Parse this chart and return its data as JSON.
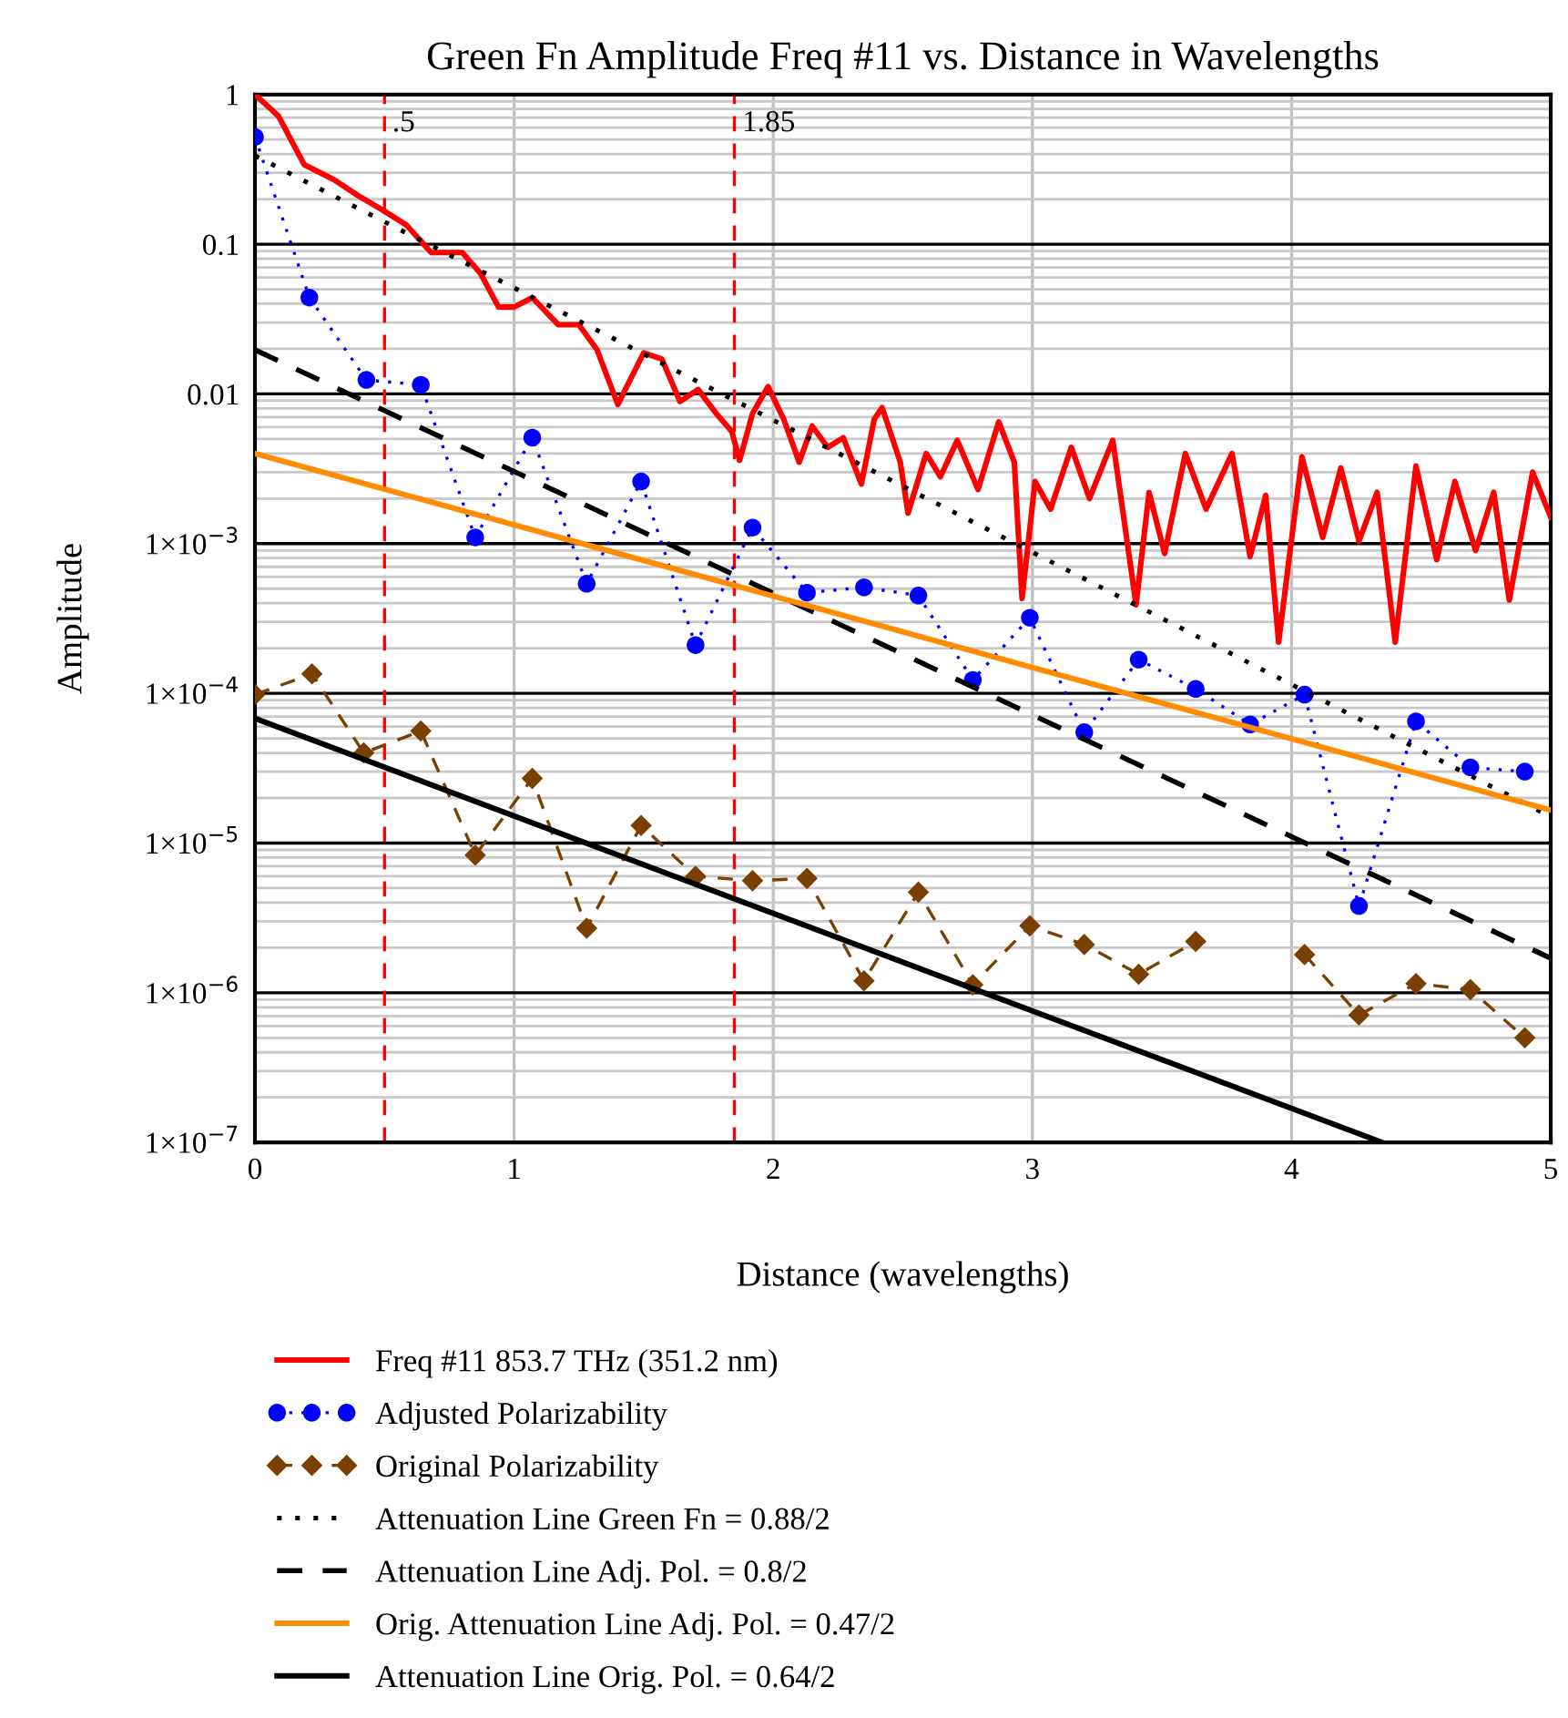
{
  "chart_data": {
    "type": "line",
    "title": "Green Fn Amplitude Freq #11 vs. Distance in Wavelengths",
    "xlabel": "Distance (wavelengths)",
    "ylabel": "Amplitude",
    "log": "y",
    "grid": true,
    "legend": "bottom",
    "xlim": [
      0,
      5
    ],
    "xticks": [
      0,
      1,
      2,
      3,
      4,
      5
    ],
    "ylim": [
      1e-07,
      1
    ],
    "yticks": [
      {
        "value": 1e-07,
        "label": "1×10$^{−7}$"
      },
      {
        "value": 1e-06,
        "label": "1×10$^{−6}$"
      },
      {
        "value": 1e-05,
        "label": "1×10$^{−5}$"
      },
      {
        "value": 0.0001,
        "label": "1×10$^{−4}$"
      },
      {
        "value": 0.001,
        "label": "1×10$^{−3}$"
      },
      0.01,
      0.1,
      1
    ],
    "ref_lines": [
      {
        "axis": "x",
        "value": 0.5,
        "label": ".5",
        "color": "#ff0000",
        "line_style": "dashed"
      },
      {
        "axis": "x",
        "value": 1.85,
        "label": "1.85",
        "color": "#ff0000",
        "line_style": "dashed"
      }
    ],
    "series": [
      {
        "name": "Freq #11 853.7 THz (351.2 nm)",
        "color": "#ff0000",
        "marker": "none",
        "line_style": "solid",
        "x": [
          0,
          0.09,
          0.19,
          0.305,
          0.4,
          0.49,
          0.585,
          0.68,
          0.8,
          0.87,
          0.94,
          1.0,
          1.07,
          1.17,
          1.25,
          1.32,
          1.4,
          1.5,
          1.57,
          1.64,
          1.71,
          1.78,
          1.84,
          1.87,
          1.92,
          1.98,
          2.04,
          2.1,
          2.15,
          2.21,
          2.27,
          2.34,
          2.39,
          2.42,
          2.49,
          2.52,
          2.59,
          2.645,
          2.71,
          2.79,
          2.87,
          2.93,
          2.96,
          3.01,
          3.07,
          3.15,
          3.22,
          3.31,
          3.4,
          3.45,
          3.51,
          3.59,
          3.67,
          3.77,
          3.84,
          3.9,
          3.95,
          4.04,
          4.12,
          4.19,
          4.26,
          4.33,
          4.4,
          4.48,
          4.56,
          4.63,
          4.71,
          4.78,
          4.84,
          4.93,
          5.0
        ],
        "values": [
          1.0,
          0.72,
          0.34,
          0.27,
          0.21,
          0.17,
          0.134,
          0.088,
          0.088,
          0.064,
          0.038,
          0.038,
          0.044,
          0.029,
          0.029,
          0.0197,
          0.0085,
          0.0188,
          0.0171,
          0.0089,
          0.0107,
          0.0074,
          0.0056,
          0.0036,
          0.0074,
          0.0112,
          0.0068,
          0.0035,
          0.0061,
          0.0044,
          0.0051,
          0.0025,
          0.0068,
          0.0081,
          0.0035,
          0.0016,
          0.004,
          0.0028,
          0.0049,
          0.0023,
          0.0065,
          0.0035,
          0.00043,
          0.0026,
          0.0017,
          0.0044,
          0.002,
          0.0049,
          0.00039,
          0.0022,
          0.00086,
          0.004,
          0.0017,
          0.004,
          0.00082,
          0.0021,
          0.00022,
          0.0038,
          0.0011,
          0.0032,
          0.00104,
          0.0022,
          0.00022,
          0.0033,
          0.00078,
          0.0026,
          0.0009,
          0.0022,
          0.00042,
          0.003,
          0.0015
        ]
      },
      {
        "name": "Adjusted Polarizability",
        "color": "#0000ff",
        "marker": "circle",
        "line_style": "dotted",
        "x": [
          0,
          0.21,
          0.43,
          0.64,
          0.85,
          1.07,
          1.28,
          1.49,
          1.7,
          1.92,
          2.13,
          2.35,
          2.56,
          2.77,
          2.99,
          3.2,
          3.41,
          3.63,
          3.84,
          4.05,
          4.26,
          4.48,
          4.69,
          4.9
        ],
        "values": [
          0.52,
          0.044,
          0.0124,
          0.0115,
          0.0011,
          0.0051,
          0.00054,
          0.0026,
          0.00021,
          0.00128,
          0.00047,
          0.00051,
          0.00045,
          0.000123,
          0.00032,
          5.5e-05,
          0.000168,
          0.000107,
          6.2e-05,
          9.8e-05,
          3.8e-06,
          6.5e-05,
          3.2e-05,
          3e-05
        ]
      },
      {
        "name": "Original Polarizability",
        "color": "#7b3f00",
        "marker": "diamond",
        "line_style": "dashed",
        "x": [
          0,
          0.22,
          0.42,
          0.64,
          0.85,
          1.07,
          1.28,
          1.49,
          1.7,
          1.92,
          2.13,
          2.35,
          2.56,
          2.77,
          2.99,
          3.2,
          3.41,
          3.63,
          3.84,
          4.05,
          4.26,
          4.48,
          4.69,
          4.9
        ],
        "values": [
          9.8e-05,
          0.000135,
          4e-05,
          5.6e-05,
          8.3e-06,
          2.7e-05,
          2.7e-06,
          1.31e-05,
          6e-06,
          5.6e-06,
          5.8e-06,
          1.2e-06,
          4.7e-06,
          1.13e-06,
          2.8e-06,
          2.1e-06,
          1.33e-06,
          2.2e-06,
          null,
          1.8e-06,
          7.1e-07,
          1.15e-06,
          1.05e-06,
          5e-07
        ]
      },
      {
        "name": "Attenuation Line Green Fn = 0.88/2",
        "color": "#000000",
        "marker": "none",
        "line_style": "dotted",
        "x": [
          0,
          5
        ],
        "values": [
          0.39,
          1.5e-05
        ]
      },
      {
        "name": "Attenuation Line Adj. Pol. = 0.8/2",
        "color": "#000000",
        "marker": "none",
        "line_style": "dashed",
        "x": [
          0,
          5
        ],
        "values": [
          0.0197,
          1.7e-06
        ]
      },
      {
        "name": "Orig. Attenuation Line Adj. Pol. = 0.47/2",
        "color": "#ff8c00",
        "marker": "none",
        "line_style": "solid",
        "x": [
          0,
          5
        ],
        "values": [
          0.004,
          1.66e-05
        ]
      },
      {
        "name": "Attenuation Line Orig. Pol. = 0.64/2",
        "color": "#000000",
        "marker": "none",
        "line_style": "solid",
        "x": [
          0,
          4.35
        ],
        "values": [
          6.8e-05,
          1e-07
        ]
      }
    ]
  }
}
